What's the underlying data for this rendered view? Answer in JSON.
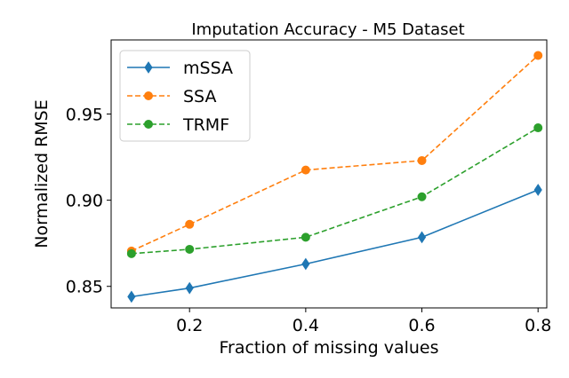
{
  "chart_data": {
    "type": "line",
    "title": "Imputation Accuracy - M5 Dataset",
    "xlabel": "Fraction of missing values",
    "ylabel": "Normalized RMSE",
    "x": [
      0.1,
      0.2,
      0.4,
      0.6,
      0.8
    ],
    "xlim": [
      0.065,
      0.815
    ],
    "ylim": [
      0.8375,
      0.993
    ],
    "xticks": [
      0.2,
      0.4,
      0.6,
      0.8
    ],
    "xtick_labels": [
      "0.2",
      "0.4",
      "0.6",
      "0.8"
    ],
    "yticks": [
      0.85,
      0.9,
      0.95
    ],
    "ytick_labels": [
      "0.85",
      "0.90",
      "0.95"
    ],
    "grid": false,
    "legend_position": "top-left",
    "series": [
      {
        "name": "mSSA",
        "values": [
          0.844,
          0.849,
          0.863,
          0.8785,
          0.906
        ],
        "color": "#1f77b4",
        "linestyle": "solid",
        "marker": "diamond"
      },
      {
        "name": "SSA",
        "values": [
          0.8705,
          0.886,
          0.9175,
          0.923,
          0.984
        ],
        "color": "#ff7f0e",
        "linestyle": "dashed",
        "marker": "circle"
      },
      {
        "name": "TRMF",
        "values": [
          0.869,
          0.8715,
          0.8785,
          0.902,
          0.942
        ],
        "color": "#2ca02c",
        "linestyle": "dashed",
        "marker": "circle"
      }
    ]
  }
}
